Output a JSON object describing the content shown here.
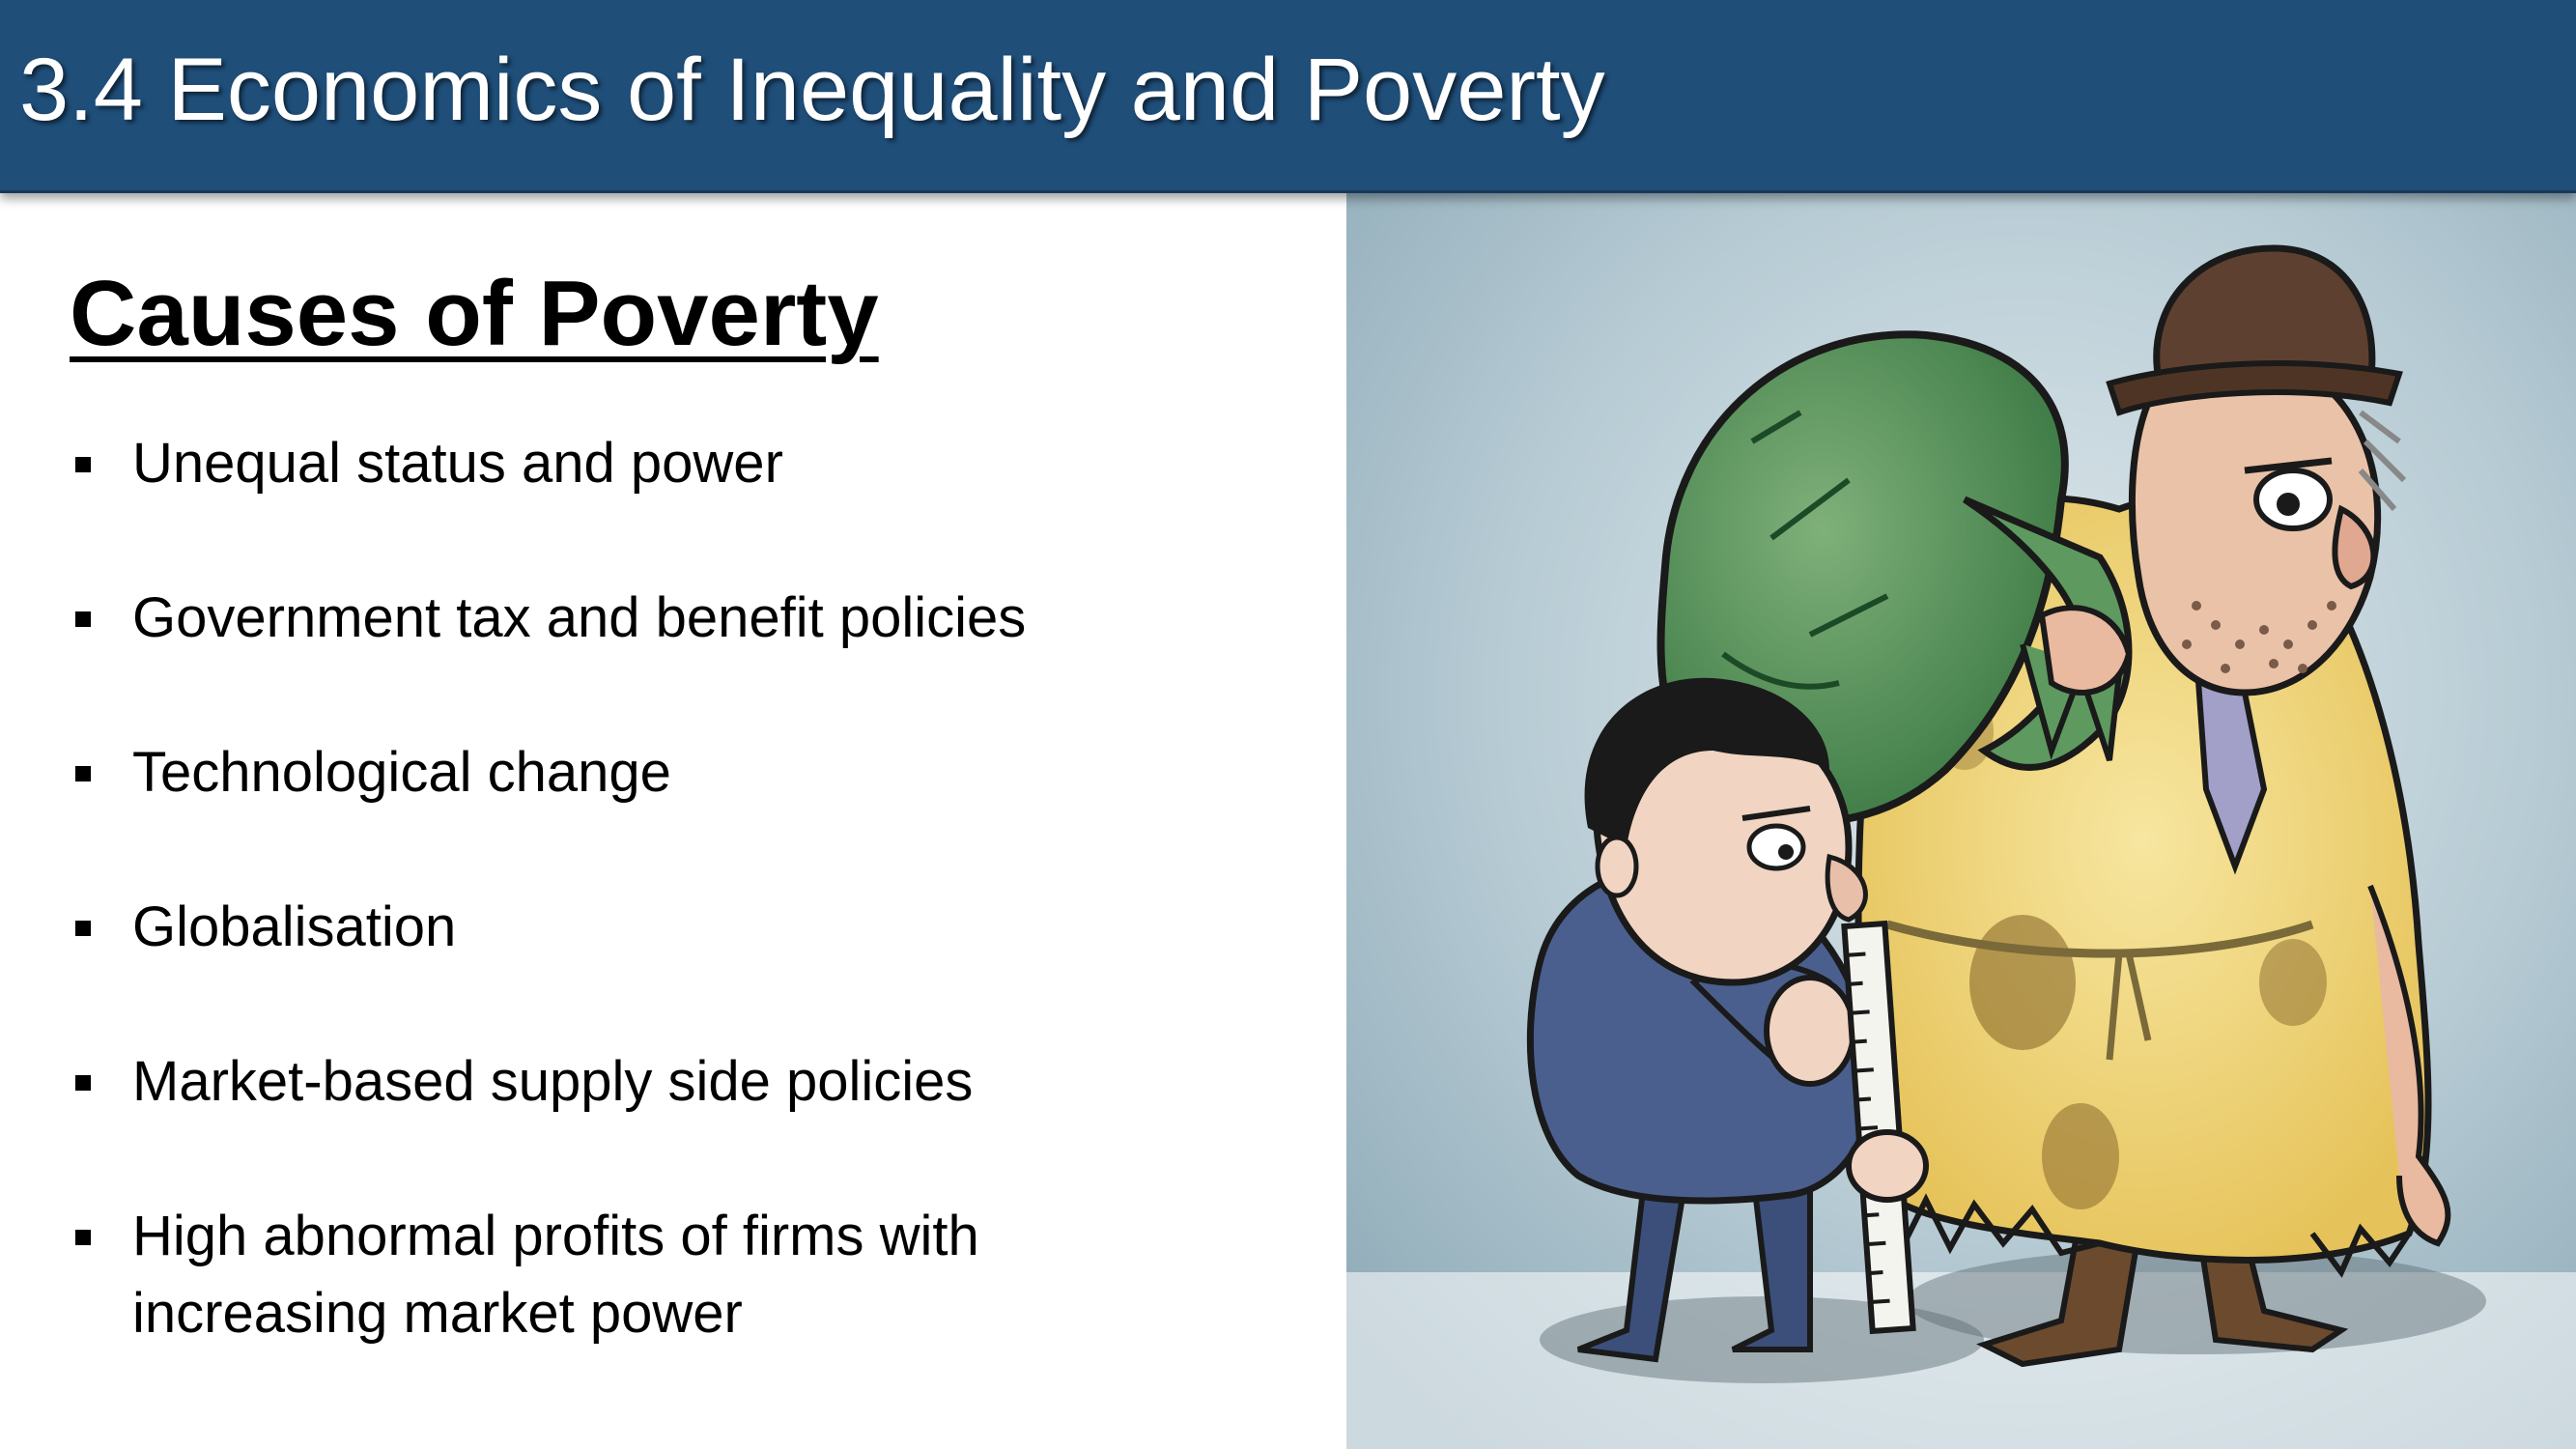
{
  "slide": {
    "title": "3.4 Economics of Inequality and Poverty",
    "heading": "Causes of Poverty",
    "bullets": [
      {
        "text": "Unequal status and power"
      },
      {
        "text": "Government tax and benefit policies"
      },
      {
        "text": "Technological change"
      },
      {
        "text": "Globalisation"
      },
      {
        "text": "Market-based supply side policies"
      },
      {
        "text": "High abnormal profits of firms with increasing market power"
      }
    ]
  },
  "cartoon": {
    "icon": "cartoon-illustration",
    "subjects": [
      "businessman-with-ruler-figure",
      "poor-man-with-sack-figure"
    ]
  },
  "colors": {
    "title_bar": "#1f4e79",
    "title_text": "#ffffff",
    "body_text": "#000000"
  }
}
